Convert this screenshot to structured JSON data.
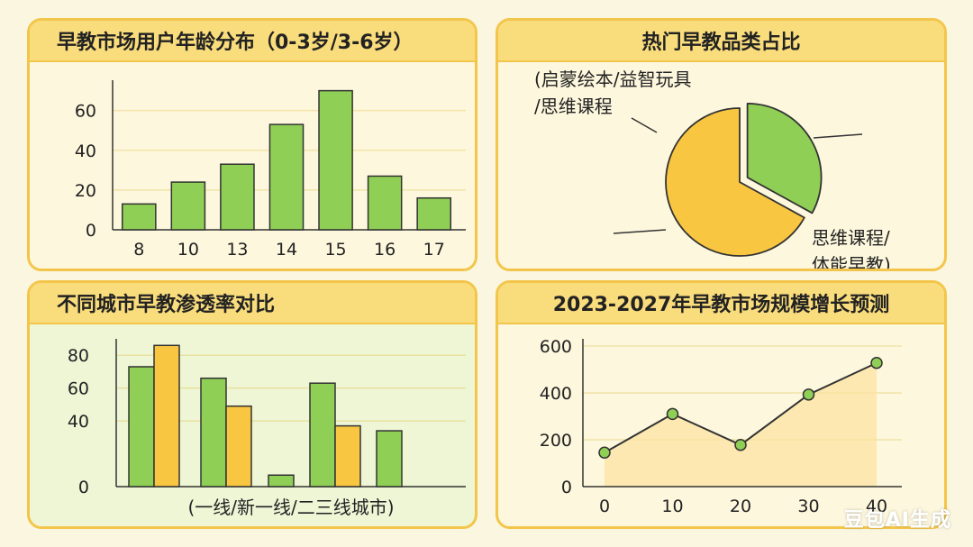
{
  "colors": {
    "green": "#8fcf55",
    "yellow": "#f8c640",
    "stroke": "#333333",
    "grid": "#f2e4a8",
    "area": "#fbe3a0"
  },
  "watermark": "豆包AI生成",
  "chart_data": [
    {
      "type": "bar",
      "title": "早教市场用户年龄分布（0-3岁/3-6岁）",
      "categories": [
        "8",
        "10",
        "13",
        "14",
        "15",
        "16",
        "17"
      ],
      "values": [
        13,
        24,
        33,
        53,
        70,
        27,
        16
      ],
      "ylim": [
        0,
        70
      ],
      "yticks": [
        0,
        20,
        40,
        60
      ],
      "grid": true
    },
    {
      "type": "pie",
      "title": "热门早教品类占比",
      "slices": [
        {
          "label": "思维课程/体能早教)",
          "value": 33,
          "color": "#8fcf55"
        },
        {
          "label": "(启蒙绘本/益智玩具/思维课程",
          "value": 67,
          "color": "#f8c640"
        }
      ],
      "label_top_left": [
        "(启蒙绘本/益智玩具",
        "/思维课程"
      ],
      "label_bottom_right": [
        "思维课程/",
        "体能早教)"
      ]
    },
    {
      "type": "bar",
      "title": "不同城市早教渗透率对比",
      "xlabel": "(一线/新一线/二三线城市)",
      "groups": [
        {
          "green": 73,
          "yellow": 86
        },
        {
          "green": 66,
          "yellow": 49
        },
        {
          "green": 7,
          "yellow": null
        },
        {
          "green": 63,
          "yellow": 37
        },
        {
          "green": 34,
          "yellow": null
        }
      ],
      "ylim": [
        0,
        90
      ],
      "yticks": [
        0,
        40,
        60,
        80
      ],
      "grid": true
    },
    {
      "type": "area",
      "title": "2023-2027年早教市场规模增长预测",
      "x": [
        0,
        10,
        20,
        30,
        40
      ],
      "y": [
        145,
        310,
        178,
        393,
        528
      ],
      "xlim": [
        0,
        40
      ],
      "ylim": [
        0,
        600
      ],
      "yticks": [
        0,
        200,
        400,
        600
      ],
      "xticks": [
        0,
        10,
        20,
        30,
        40
      ],
      "grid": true
    }
  ]
}
